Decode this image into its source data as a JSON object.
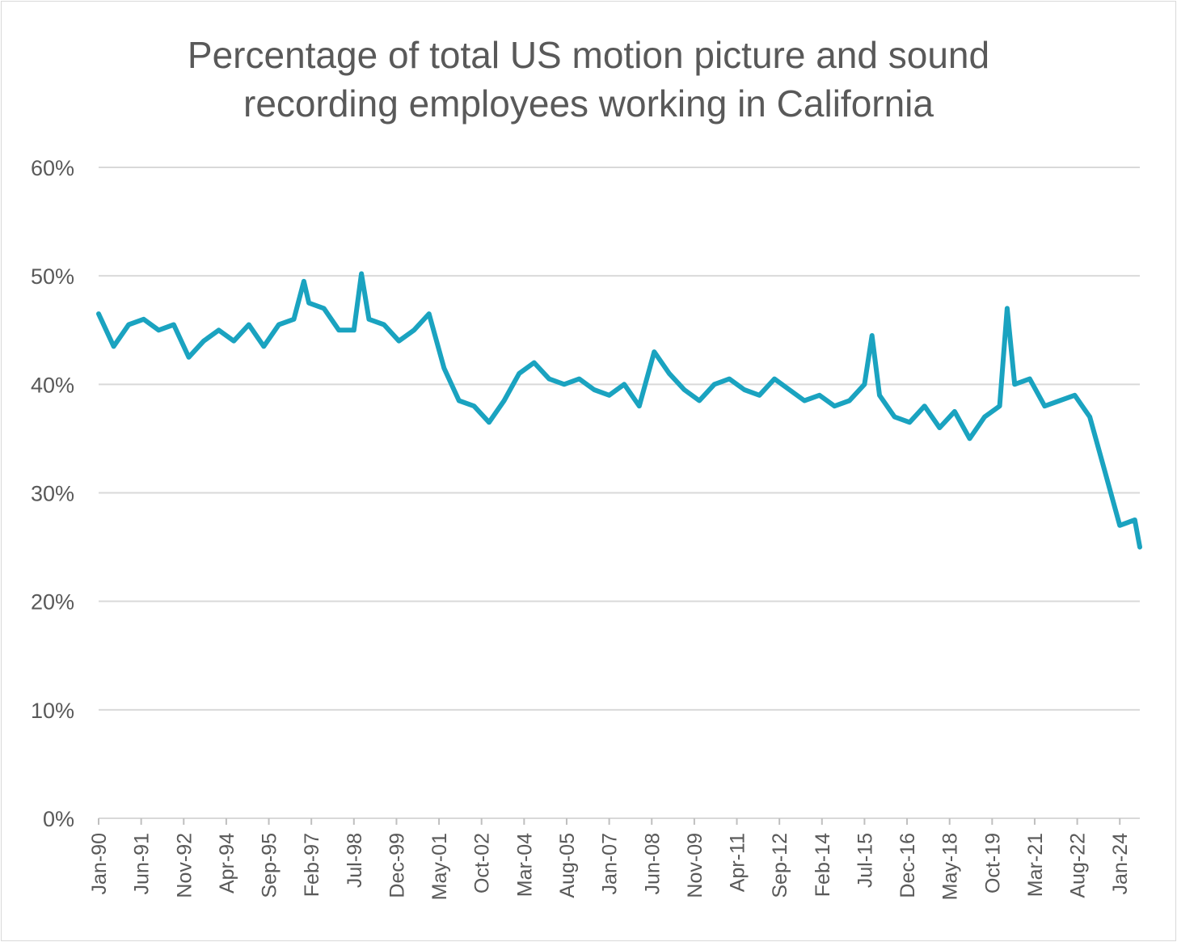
{
  "chart_data": {
    "type": "line",
    "title": "Percentage of total US motion picture and sound recording employees working in California",
    "title_lines": [
      "Percentage of total US motion picture and sound",
      "recording employees working in California"
    ],
    "xlabel": "",
    "ylabel": "",
    "ylim": [
      0,
      60
    ],
    "yticks": [
      "0%",
      "10%",
      "20%",
      "30%",
      "40%",
      "50%",
      "60%"
    ],
    "ytick_values": [
      0,
      10,
      20,
      30,
      40,
      50,
      60
    ],
    "xticks": [
      "Jan-90",
      "Jun-91",
      "Nov-92",
      "Apr-94",
      "Sep-95",
      "Feb-97",
      "Jul-98",
      "Dec-99",
      "May-01",
      "Oct-02",
      "Mar-04",
      "Aug-05",
      "Jan-07",
      "Jun-08",
      "Nov-09",
      "Apr-11",
      "Sep-12",
      "Feb-14",
      "Jul-15",
      "Dec-16",
      "May-18",
      "Oct-19",
      "Mar-21",
      "Aug-22",
      "Jan-24"
    ],
    "x_range": [
      "Jan-90",
      "Sep-24"
    ],
    "grid": true,
    "legend": "none",
    "line_color": "#1aa3c0",
    "series": [
      {
        "x": [
          "Jan-90",
          "Jul-90",
          "Jan-91",
          "Jul-91",
          "Jan-92",
          "Jul-92",
          "Jan-93",
          "Jul-93",
          "Jan-94",
          "Jul-94",
          "Jan-95",
          "Jul-95",
          "Jan-96",
          "Jul-96",
          "Nov-96",
          "Jan-97",
          "Jul-97",
          "Jan-98",
          "Jul-98",
          "Oct-98",
          "Jan-99",
          "Jul-99",
          "Jan-00",
          "Jul-00",
          "Jan-01",
          "Jul-01",
          "Jan-02",
          "Jul-02",
          "Jan-03",
          "Jul-03",
          "Jan-04",
          "Jul-04",
          "Jan-05",
          "Jul-05",
          "Jan-06",
          "Jul-06",
          "Jan-07",
          "Jul-07",
          "Jan-08",
          "Jul-08",
          "Jan-09",
          "Jul-09",
          "Jan-10",
          "Jul-10",
          "Jan-11",
          "Jul-11",
          "Jan-12",
          "Jul-12",
          "Jan-13",
          "Jul-13",
          "Jan-14",
          "Jul-14",
          "Jan-15",
          "Jul-15",
          "Oct-15",
          "Jan-16",
          "Jul-16",
          "Jan-17",
          "Jul-17",
          "Jan-18",
          "Jul-18",
          "Jan-19",
          "Jul-19",
          "Jan-20",
          "Apr-20",
          "Jul-20",
          "Jan-21",
          "Jul-21",
          "Jan-22",
          "Jul-22",
          "Jan-23",
          "Jul-23",
          "Jan-24",
          "Jul-24",
          "Sep-24"
        ],
        "values": [
          46.5,
          43.5,
          45.5,
          46.0,
          45.0,
          45.5,
          42.5,
          44.0,
          45.0,
          44.0,
          45.5,
          43.5,
          45.5,
          46.0,
          49.5,
          47.5,
          47.0,
          45.0,
          45.0,
          50.2,
          46.0,
          45.5,
          44.0,
          45.0,
          46.5,
          41.5,
          38.5,
          38.0,
          36.5,
          38.5,
          41.0,
          42.0,
          40.5,
          40.0,
          40.5,
          39.5,
          39.0,
          40.0,
          38.0,
          43.0,
          41.0,
          39.5,
          38.5,
          40.0,
          40.5,
          39.5,
          39.0,
          40.5,
          39.5,
          38.5,
          39.0,
          38.0,
          38.5,
          40.0,
          44.5,
          39.0,
          37.0,
          36.5,
          38.0,
          36.0,
          37.5,
          35.0,
          37.0,
          38.0,
          47.0,
          40.0,
          40.5,
          38.0,
          38.5,
          39.0,
          37.0,
          32.0,
          27.0,
          27.5,
          25.0
        ]
      }
    ]
  }
}
